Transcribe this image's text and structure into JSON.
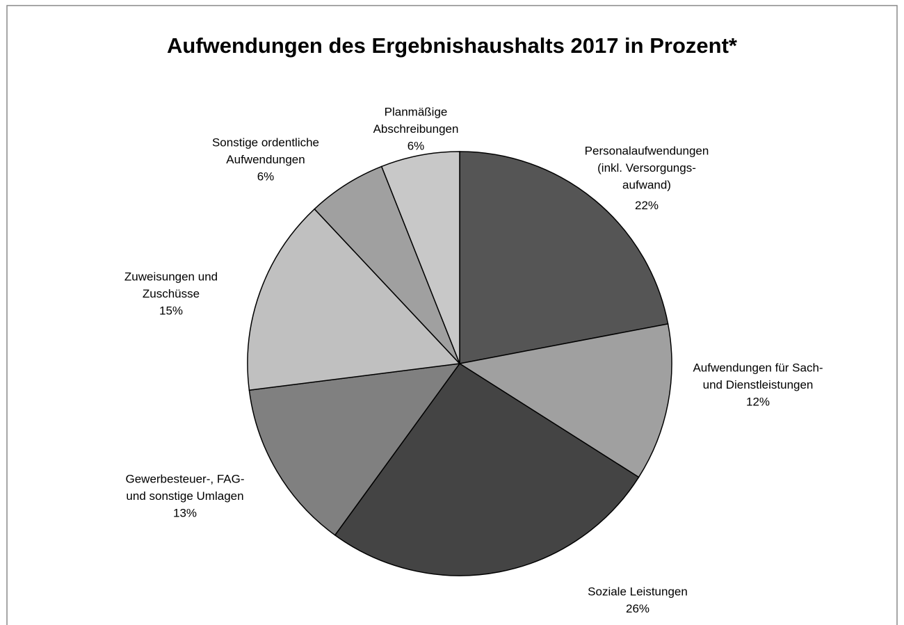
{
  "chart_data": {
    "type": "pie",
    "title": "Aufwendungen des Ergebnishaushalts 2017 in Prozent*",
    "categories": [
      [
        "Personalaufwendungen",
        "(inkl. Versorgungs-",
        "aufwand)"
      ],
      [
        "Aufwendungen für Sach-",
        "und Dienstleistungen"
      ],
      [
        "Soziale Leistungen"
      ],
      [
        "Gewerbesteuer-, FAG-",
        "und sonstige Umlagen"
      ],
      [
        "Zuweisungen und",
        "Zuschüsse"
      ],
      [
        "Sonstige ordentliche",
        "Aufwendungen"
      ],
      [
        "Planmäßige",
        "Abschreibungen"
      ]
    ],
    "values": [
      22,
      12,
      26,
      13,
      15,
      6,
      6
    ],
    "value_labels": [
      "22%",
      "12%",
      "26%",
      "13%",
      "15%",
      "6%",
      "6%"
    ],
    "colors": [
      "#555555",
      "#a0a0a0",
      "#444444",
      "#808080",
      "#c0c0c0",
      "#a0a0a0",
      "#c8c8c8"
    ]
  }
}
